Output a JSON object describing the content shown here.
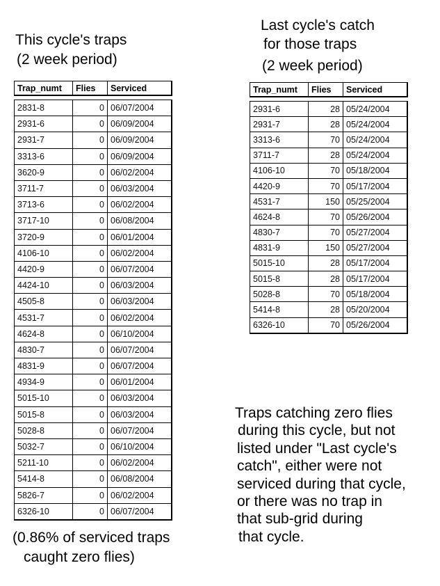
{
  "left": {
    "title_lines": [
      "This cycle's traps",
      "(2 week period)"
    ],
    "columns": [
      "Trap_numt",
      "Flies",
      "Serviced"
    ],
    "rows": [
      [
        "2831-8",
        "0",
        "06/07/2004"
      ],
      [
        "2931-6",
        "0",
        "06/09/2004"
      ],
      [
        "2931-7",
        "0",
        "06/09/2004"
      ],
      [
        "3313-6",
        "0",
        "06/09/2004"
      ],
      [
        "3620-9",
        "0",
        "06/02/2004"
      ],
      [
        "3711-7",
        "0",
        "06/03/2004"
      ],
      [
        "3713-6",
        "0",
        "06/02/2004"
      ],
      [
        "3717-10",
        "0",
        "06/08/2004"
      ],
      [
        "3720-9",
        "0",
        "06/01/2004"
      ],
      [
        "4106-10",
        "0",
        "06/02/2004"
      ],
      [
        "4420-9",
        "0",
        "06/07/2004"
      ],
      [
        "4424-10",
        "0",
        "06/03/2004"
      ],
      [
        "4505-8",
        "0",
        "06/03/2004"
      ],
      [
        "4531-7",
        "0",
        "06/02/2004"
      ],
      [
        "4624-8",
        "0",
        "06/10/2004"
      ],
      [
        "4830-7",
        "0",
        "06/07/2004"
      ],
      [
        "4831-9",
        "0",
        "06/07/2004"
      ],
      [
        "4934-9",
        "0",
        "06/01/2004"
      ],
      [
        "5015-10",
        "0",
        "06/03/2004"
      ],
      [
        "5015-8",
        "0",
        "06/03/2004"
      ],
      [
        "5028-8",
        "0",
        "06/07/2004"
      ],
      [
        "5032-7",
        "0",
        "06/10/2004"
      ],
      [
        "5211-10",
        "0",
        "06/02/2004"
      ],
      [
        "5414-8",
        "0",
        "06/08/2004"
      ],
      [
        "5826-7",
        "0",
        "06/02/2004"
      ],
      [
        "6326-10",
        "0",
        "06/07/2004"
      ]
    ],
    "footnote_lines": [
      "(0.86% of serviced traps",
      "caught zero flies)"
    ]
  },
  "right": {
    "title_lines": [
      "Last cycle's catch",
      "for those traps",
      "(2 week period)"
    ],
    "columns": [
      "Trap_numt",
      "Flies",
      "Serviced"
    ],
    "rows": [
      [
        "2931-6",
        "28",
        "05/24/2004"
      ],
      [
        "2931-7",
        "28",
        "05/24/2004"
      ],
      [
        "3313-6",
        "70",
        "05/24/2004"
      ],
      [
        "3711-7",
        "28",
        "05/24/2004"
      ],
      [
        "4106-10",
        "70",
        "05/18/2004"
      ],
      [
        "4420-9",
        "70",
        "05/17/2004"
      ],
      [
        "4531-7",
        "150",
        "05/25/2004"
      ],
      [
        "4624-8",
        "70",
        "05/26/2004"
      ],
      [
        "4830-7",
        "70",
        "05/27/2004"
      ],
      [
        "4831-9",
        "150",
        "05/27/2004"
      ],
      [
        "5015-10",
        "28",
        "05/17/2004"
      ],
      [
        "5015-8",
        "28",
        "05/17/2004"
      ],
      [
        "5028-8",
        "70",
        "05/18/2004"
      ],
      [
        "5414-8",
        "28",
        "05/20/2004"
      ],
      [
        "6326-10",
        "70",
        "05/26/2004"
      ]
    ]
  },
  "note_lines": [
    "Traps catching zero flies",
    "during this cycle, but not",
    "listed under \"Last cycle's",
    "catch\", either were not",
    "serviced during that cycle,",
    "or there was no trap in",
    "that sub-grid during",
    "that cycle."
  ]
}
